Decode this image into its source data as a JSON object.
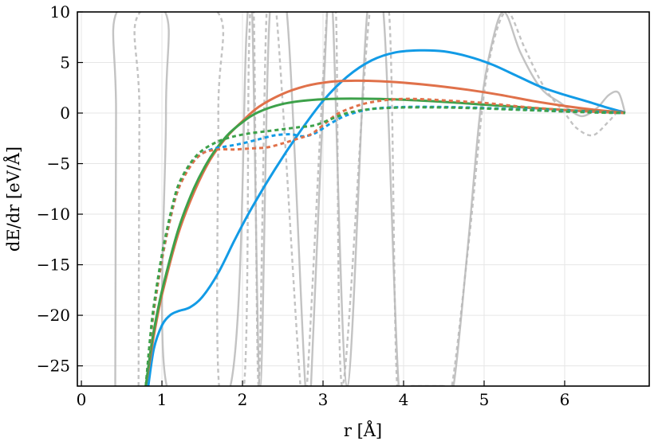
{
  "chart_data": {
    "type": "line",
    "xlabel": "r [Å]",
    "ylabel": "dE/dr [eV/Å]",
    "xlim": [
      -0.05,
      7.05
    ],
    "ylim": [
      -27,
      10
    ],
    "xticks": [
      0,
      1,
      2,
      3,
      4,
      5,
      6
    ],
    "yticks": [
      10,
      5,
      0,
      -5,
      -10,
      -15,
      -20,
      -25
    ],
    "ytick_labels": [
      "10",
      "5",
      "0",
      "−5",
      "−10",
      "−15",
      "−20",
      "−25"
    ],
    "grid": true,
    "legend": "none",
    "colors": {
      "blue": "#129be6",
      "orange": "#e0714a",
      "green": "#3da14a",
      "gray": "#b9b9b9"
    },
    "series": [
      {
        "style": "solid",
        "color": "#129be6",
        "x": [
          0.83,
          0.9,
          1.0,
          1.1,
          1.2,
          1.35,
          1.5,
          1.7,
          1.9,
          2.1,
          2.4,
          2.7,
          3.0,
          3.3,
          3.6,
          3.9,
          4.2,
          4.5,
          4.8,
          5.1,
          5.4,
          5.7,
          6.0,
          6.3,
          6.5,
          6.75
        ],
        "y": [
          -27,
          -23.3,
          -21.0,
          -20.0,
          -19.6,
          -19.2,
          -18.2,
          -15.8,
          -12.6,
          -9.6,
          -5.6,
          -2.0,
          1.2,
          3.6,
          5.2,
          6.0,
          6.2,
          6.1,
          5.6,
          4.8,
          3.7,
          2.6,
          1.8,
          1.1,
          0.6,
          0.05
        ]
      },
      {
        "style": "solid",
        "color": "#e0714a",
        "x": [
          0.8,
          0.85,
          0.9,
          1.0,
          1.2,
          1.4,
          1.6,
          1.8,
          2.0,
          2.2,
          2.5,
          2.8,
          3.1,
          3.4,
          3.7,
          4.0,
          4.4,
          4.8,
          5.2,
          5.6,
          6.0,
          6.4,
          6.75
        ],
        "y": [
          -27,
          -24.5,
          -22.0,
          -18.0,
          -12.0,
          -7.8,
          -4.6,
          -2.4,
          -0.8,
          0.6,
          1.9,
          2.7,
          3.1,
          3.2,
          3.15,
          3.0,
          2.7,
          2.3,
          1.8,
          1.2,
          0.7,
          0.3,
          0.05
        ]
      },
      {
        "style": "solid",
        "color": "#3da14a",
        "x": [
          0.8,
          0.85,
          0.9,
          1.0,
          1.2,
          1.4,
          1.6,
          1.8,
          2.0,
          2.2,
          2.5,
          2.8,
          3.1,
          3.5,
          3.9,
          4.3,
          4.7,
          5.1,
          5.5,
          6.0,
          6.4,
          6.75
        ],
        "y": [
          -27,
          -24.0,
          -21.5,
          -17.6,
          -11.6,
          -7.4,
          -4.4,
          -2.3,
          -0.9,
          0.1,
          0.9,
          1.25,
          1.4,
          1.42,
          1.35,
          1.2,
          1.0,
          0.78,
          0.55,
          0.3,
          0.15,
          0.02
        ]
      },
      {
        "style": "dashed",
        "color": "#129be6",
        "x": [
          0.8,
          0.85,
          0.9,
          1.0,
          1.1,
          1.2,
          1.35,
          1.5,
          1.65,
          1.8,
          2.0,
          2.2,
          2.4,
          2.6,
          2.75,
          2.9,
          3.1,
          3.3,
          3.6,
          4.0,
          4.5,
          5.0,
          5.5,
          6.0,
          6.4,
          6.75
        ],
        "y": [
          -27,
          -23.0,
          -19.5,
          -14.5,
          -10.6,
          -7.6,
          -5.2,
          -4.0,
          -3.5,
          -3.3,
          -3.0,
          -2.6,
          -2.2,
          -2.1,
          -2.3,
          -2.0,
          -1.0,
          -0.2,
          0.4,
          0.6,
          0.6,
          0.5,
          0.35,
          0.2,
          0.1,
          0.0
        ]
      },
      {
        "style": "dashed",
        "color": "#e0714a",
        "x": [
          0.8,
          0.85,
          0.9,
          1.0,
          1.1,
          1.2,
          1.35,
          1.5,
          1.7,
          1.9,
          2.1,
          2.3,
          2.5,
          2.7,
          2.85,
          3.0,
          3.2,
          3.5,
          3.8,
          4.1,
          4.5,
          5.0,
          5.5,
          6.0,
          6.4,
          6.75
        ],
        "y": [
          -27,
          -23.0,
          -19.5,
          -14.5,
          -10.6,
          -7.6,
          -5.3,
          -4.0,
          -3.6,
          -3.6,
          -3.5,
          -3.4,
          -3.0,
          -2.5,
          -2.1,
          -1.2,
          0.0,
          0.9,
          1.3,
          1.4,
          1.25,
          1.0,
          0.6,
          0.3,
          0.12,
          0.0
        ]
      },
      {
        "style": "dashed",
        "color": "#3da14a",
        "x": [
          0.8,
          0.85,
          0.9,
          1.0,
          1.1,
          1.2,
          1.35,
          1.5,
          1.7,
          1.9,
          2.1,
          2.3,
          2.5,
          2.7,
          2.9,
          3.1,
          3.3,
          3.6,
          4.0,
          4.5,
          5.0,
          5.5,
          6.0,
          6.4,
          6.75
        ],
        "y": [
          -27,
          -22.5,
          -19.0,
          -14.0,
          -10.2,
          -7.2,
          -5.0,
          -3.7,
          -2.8,
          -2.3,
          -2.0,
          -1.8,
          -1.6,
          -1.4,
          -1.2,
          -0.6,
          0.0,
          0.4,
          0.55,
          0.55,
          0.45,
          0.3,
          0.15,
          0.05,
          0.0
        ]
      },
      {
        "style": "solid",
        "color": "#b9b9b9",
        "x": [
          0.42,
          0.43,
          0.44,
          1.04,
          1.05,
          1.06,
          1.85,
          2.05,
          2.12,
          2.22,
          2.34,
          2.55,
          2.78,
          2.85,
          3.05,
          3.12,
          3.3,
          3.55,
          3.75,
          3.94,
          4.1,
          4.3,
          4.5,
          4.62,
          4.8,
          4.95,
          5.1,
          5.25,
          5.45,
          5.7,
          5.95,
          6.2,
          6.4,
          6.55,
          6.67,
          6.75
        ],
        "y": [
          -27,
          0,
          10,
          10,
          0,
          -27,
          -27,
          8,
          10,
          -27,
          10,
          10,
          -27,
          -27,
          10,
          10,
          -27,
          10,
          10,
          -27,
          -27,
          -27,
          -27,
          -27,
          -13,
          0,
          7,
          10,
          6,
          2.5,
          1.0,
          -0.3,
          0.5,
          1.8,
          2.0,
          0.0
        ]
      },
      {
        "style": "dashed",
        "color": "#b9b9b9",
        "x": [
          0.71,
          0.72,
          0.73,
          1.69,
          1.7,
          1.71,
          2.02,
          2.08,
          2.14,
          2.2,
          2.3,
          2.42,
          2.72,
          2.8,
          3.05,
          3.16,
          3.24,
          3.58,
          3.82,
          3.92,
          4.1,
          4.3,
          4.5,
          4.6,
          4.82,
          5.0,
          5.15,
          5.3,
          5.5,
          5.75,
          6.0,
          6.15,
          6.35,
          6.55,
          6.67,
          6.75
        ],
        "y": [
          -27,
          0,
          10,
          10,
          0,
          -27,
          -27,
          6,
          10,
          -27,
          10,
          10,
          -27,
          -27,
          10,
          10,
          -27,
          10,
          10,
          -27,
          -27,
          -27,
          -27,
          -27,
          -12,
          2,
          8,
          10,
          6.5,
          2.5,
          0.0,
          -1.5,
          -2.2,
          -0.8,
          0.2,
          0.0
        ]
      }
    ]
  }
}
